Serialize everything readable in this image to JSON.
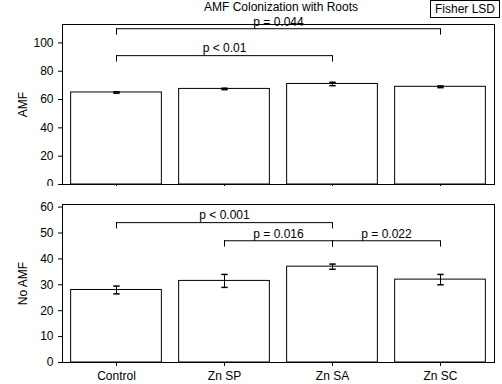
{
  "chart_data": [
    {
      "type": "bar",
      "title": "AMF Colonization with Roots",
      "label_box": "Fisher LSD",
      "y_label": "AMF",
      "tick_labels": "y",
      "categories": [
        "Control",
        "Zn SP",
        "Zn SA",
        "Zn SC"
      ],
      "values": [
        65,
        67.5,
        71,
        69
      ],
      "errors": [
        0.5,
        0.5,
        1.2,
        0.6
      ],
      "color": "#ffffff",
      "ylim": [
        0,
        113
      ],
      "yticks": [
        0,
        20,
        40,
        60,
        80,
        100
      ],
      "annotations": [
        {
          "from": "Control",
          "to": "Zn SA",
          "y": 91,
          "text": "p < 0.01"
        },
        {
          "from": "Control",
          "to": "Zn SC",
          "y": 110,
          "text": "p = 0.044"
        }
      ]
    },
    {
      "type": "bar",
      "y_label": "No AMF",
      "categories": [
        "Control",
        "Zn SP",
        "Zn SA",
        "Zn SC"
      ],
      "values": [
        28,
        31.5,
        37,
        32
      ],
      "errors": [
        1.5,
        2.5,
        1,
        2
      ],
      "color": "#ffffff",
      "ylim": [
        0,
        61
      ],
      "yticks": [
        0,
        10,
        20,
        30,
        40,
        50,
        60
      ],
      "annotations": [
        {
          "from": "Control",
          "to": "Zn SA",
          "y": 54,
          "text": "p < 0.001"
        },
        {
          "from": "Zn SP",
          "to": "Zn SA",
          "y": 47,
          "text": "p = 0.016"
        },
        {
          "from": "Zn SA",
          "to": "Zn SC",
          "y": 47,
          "text": "p = 0.022"
        }
      ]
    }
  ]
}
